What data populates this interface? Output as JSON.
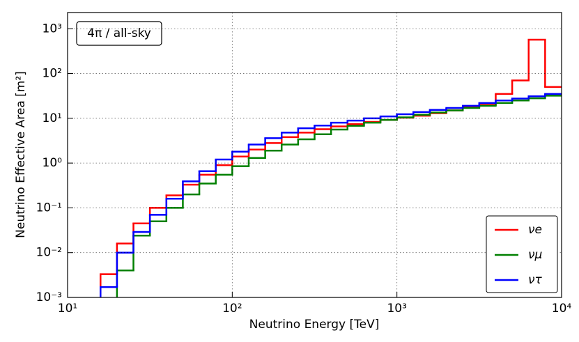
{
  "chart_data": {
    "type": "step-histogram",
    "annotation": "4π / all-sky",
    "x_label": "Neutrino Energy [TeV]",
    "y_label": "Neutrino Effective Area [m²]",
    "log_x": true,
    "log_y": true,
    "grid": true,
    "legend": "lower right",
    "xlim": [
      10,
      10000
    ],
    "ylim": [
      0.001,
      2300
    ],
    "xticks": [
      {
        "value": 10,
        "label": "10¹"
      },
      {
        "value": 100,
        "label": "10²"
      },
      {
        "value": 1000,
        "label": "10³"
      },
      {
        "value": 10000,
        "label": "10⁴"
      }
    ],
    "yticks": [
      {
        "value": 0.001,
        "label": "10⁻³"
      },
      {
        "value": 0.01,
        "label": "10⁻²"
      },
      {
        "value": 0.1,
        "label": "10⁻¹"
      },
      {
        "value": 1,
        "label": "10⁰"
      },
      {
        "value": 10,
        "label": "10¹"
      },
      {
        "value": 100,
        "label": "10²"
      },
      {
        "value": 1000,
        "label": "10³"
      }
    ],
    "bins": [
      10,
      12.59,
      15.85,
      19.95,
      25.12,
      31.62,
      39.81,
      50.12,
      63.1,
      79.43,
      100,
      125.9,
      158.5,
      199.5,
      251.2,
      316.2,
      398.1,
      501.2,
      631,
      794.3,
      1000,
      1259,
      1585,
      1995,
      2512,
      3162,
      3981,
      5012,
      6310,
      7943,
      10000
    ],
    "series": [
      {
        "name": "νe",
        "color": "#ff0000",
        "values": [
          null,
          null,
          0.0033,
          0.016,
          0.045,
          0.1,
          0.19,
          0.33,
          0.55,
          0.9,
          1.4,
          2.0,
          2.8,
          3.8,
          4.8,
          5.7,
          6.6,
          7.4,
          8.3,
          9.2,
          10.3,
          11.4,
          13,
          15,
          17.5,
          20,
          35,
          70,
          570,
          50
        ]
      },
      {
        "name": "νμ",
        "color": "#008000",
        "values": [
          null,
          null,
          null,
          0.004,
          0.024,
          0.05,
          0.1,
          0.2,
          0.35,
          0.55,
          0.85,
          1.3,
          1.9,
          2.6,
          3.4,
          4.4,
          5.6,
          6.8,
          8,
          9.2,
          10.5,
          12,
          13.5,
          15,
          17,
          19,
          22,
          25,
          28,
          32
        ]
      },
      {
        "name": "ντ",
        "color": "#0000ff",
        "values": [
          null,
          null,
          0.0017,
          0.01,
          0.029,
          0.07,
          0.16,
          0.39,
          0.66,
          1.2,
          1.8,
          2.6,
          3.6,
          4.8,
          6,
          6.9,
          8,
          8.9,
          10,
          11,
          12.3,
          13.8,
          15.4,
          17,
          19,
          22,
          25,
          27.6,
          31,
          35
        ]
      }
    ]
  }
}
